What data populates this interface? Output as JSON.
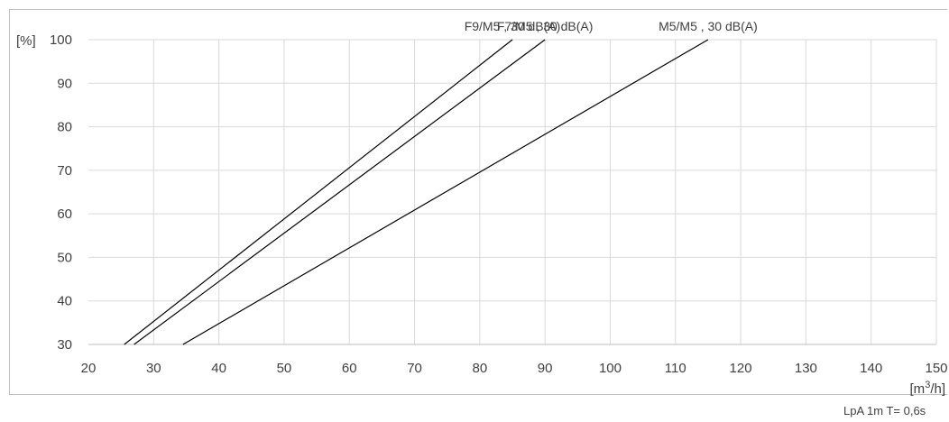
{
  "chart_data": {
    "type": "line",
    "ylabel": "[%]",
    "xlabel": "[m3/h]",
    "xlim": [
      20,
      150
    ],
    "ylim": [
      30,
      100
    ],
    "x_ticks": [
      20,
      30,
      40,
      50,
      60,
      70,
      80,
      90,
      100,
      110,
      120,
      130,
      140,
      150
    ],
    "y_ticks": [
      30,
      40,
      50,
      60,
      70,
      80,
      90,
      100
    ],
    "grid": true,
    "series": [
      {
        "name": "F9/M5 , 30 dB(A)",
        "x": [
          25.5,
          85
        ],
        "y": [
          30,
          100
        ]
      },
      {
        "name": "F7/M5 , 30 dB(A)",
        "x": [
          27,
          90
        ],
        "y": [
          30,
          100
        ]
      },
      {
        "name": "M5/M5 , 30 dB(A)",
        "x": [
          34.5,
          115
        ],
        "y": [
          30,
          100
        ]
      }
    ],
    "note": "LpA 1m T= 0,6s"
  }
}
